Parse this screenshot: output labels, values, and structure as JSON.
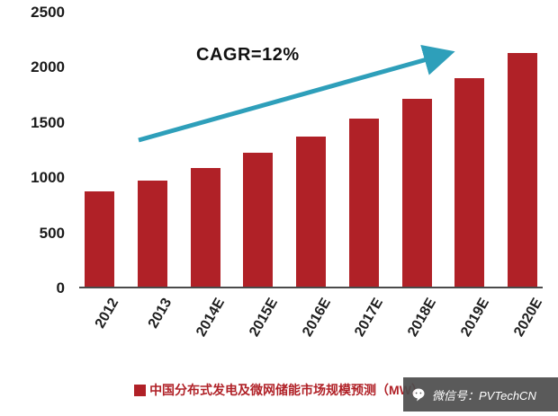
{
  "watermark": {
    "text": "微信号：PVTechCN"
  },
  "colors": {
    "bar": "#b02127",
    "arrow": "#2e9fba",
    "legend_text": "#b02127",
    "axis": "#4a4a4a",
    "tick_label": "#1a1a1a",
    "watermark_bg": "#4d4d4d",
    "watermark_text": "#ffffff"
  },
  "chart_data": {
    "type": "bar",
    "categories": [
      "2012",
      "2013",
      "2014E",
      "2015E",
      "2016E",
      "2017E",
      "2018E",
      "2019E",
      "2020E"
    ],
    "values": [
      870,
      965,
      1085,
      1220,
      1365,
      1530,
      1710,
      1900,
      2135
    ],
    "title": "",
    "xlabel": "",
    "ylabel": "",
    "ylim": [
      0,
      2500
    ],
    "yticks": [
      0,
      500,
      1000,
      1500,
      2000,
      2500
    ],
    "grid": false,
    "annotation": "CAGR=12%",
    "legend": "中国分布式发电及微网储能市场规模预测（MW）",
    "legend_position": "bottom"
  }
}
